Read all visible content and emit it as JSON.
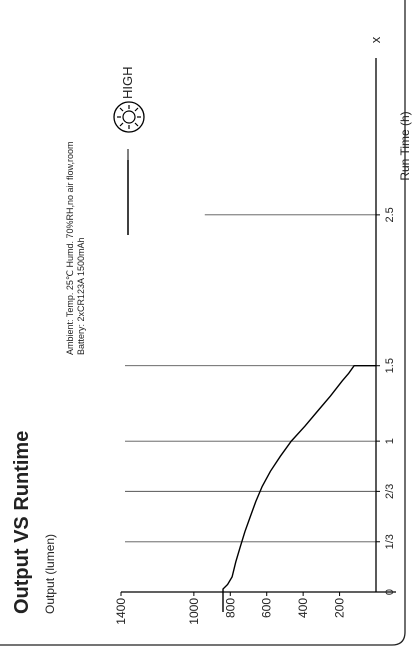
{
  "title": "Output VS Runtime",
  "ylabel": "Output (lumen)",
  "xlabel": "Run Time (h)",
  "x_axis_arrow_label": "x",
  "ambient_line1": "Ambient: Temp. 25℃  Humd.   70%RH,no air flow,room",
  "ambient_line2": "Battery:   2xCR123A 1500mAh",
  "colors": {
    "line": "#000000",
    "grid": "#555555",
    "text": "#222222"
  },
  "chart_data": {
    "type": "line",
    "title": "Output VS Runtime",
    "xlabel": "Run Time (h)",
    "ylabel": "Output (lumen)",
    "orientation": "rotated-90-counterclockwise",
    "xlim": [
      0,
      3.5
    ],
    "ylim": [
      0,
      1400
    ],
    "x_ticks": [
      {
        "value": 0,
        "label": "0"
      },
      {
        "value": 0.333,
        "label": "1/3"
      },
      {
        "value": 0.667,
        "label": "2/3"
      },
      {
        "value": 1,
        "label": "1"
      },
      {
        "value": 1.5,
        "label": "1.5"
      },
      {
        "value": 2.5,
        "label": "2.5"
      }
    ],
    "y_ticks": [
      {
        "value": 0,
        "label": "0"
      },
      {
        "value": 200,
        "label": "200"
      },
      {
        "value": 400,
        "label": "400"
      },
      {
        "value": 600,
        "label": "600"
      },
      {
        "value": 800,
        "label": "800"
      },
      {
        "value": 1000,
        "label": "1000"
      },
      {
        "value": 1400,
        "label": "1400"
      }
    ],
    "vertical_gridlines": [
      0.333,
      0.667,
      1,
      1.5,
      2.5
    ],
    "grid": true,
    "legend": {
      "position": "top-right",
      "icon": "bulb-icon"
    },
    "series": [
      {
        "name": "HIGH",
        "x": [
          0,
          0.02,
          0.05,
          0.1,
          0.2,
          0.3,
          0.4,
          0.5,
          0.6,
          0.7,
          0.8,
          0.9,
          1.0,
          1.1,
          1.2,
          1.3,
          1.4,
          1.45,
          1.5
        ],
        "y": [
          840,
          840,
          815,
          790,
          770,
          745,
          720,
          690,
          660,
          625,
          580,
          525,
          465,
          390,
          320,
          250,
          185,
          150,
          120
        ]
      }
    ]
  }
}
